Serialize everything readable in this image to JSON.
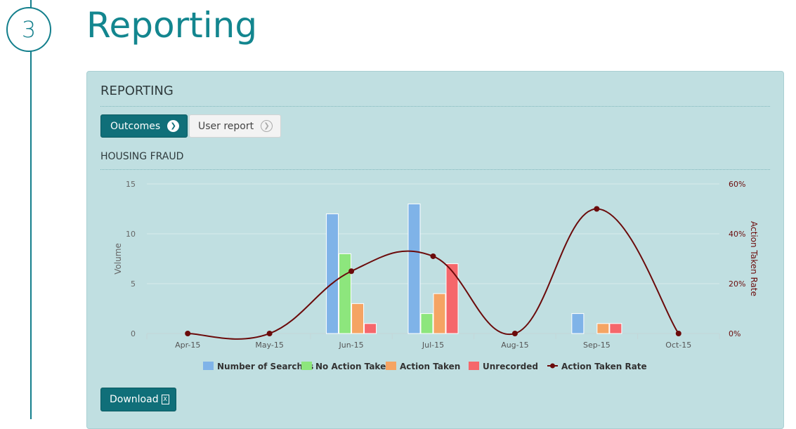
{
  "step": {
    "number": "3"
  },
  "page": {
    "title": "Reporting"
  },
  "panel": {
    "title": "REPORTING",
    "buttons": {
      "outcomes": "Outcomes",
      "user_report": "User report"
    },
    "section_title": "HOUSING FRAUD",
    "download_label": "Download",
    "download_icon": "excel-file-icon"
  },
  "colors": {
    "accent": "#13868f",
    "panel_bg": "#c0dfe1",
    "searches": "#7fb3e8",
    "no_action": "#8de67d",
    "action": "#f5a463",
    "unrecorded": "#f5676b",
    "rate": "#6b0b0b"
  },
  "chart_data": {
    "type": "bar",
    "categories": [
      "Apr-15",
      "May-15",
      "Jun-15",
      "Jul-15",
      "Aug-15",
      "Sep-15",
      "Oct-15"
    ],
    "series": [
      {
        "name": "Number of Searches",
        "values": [
          0,
          0,
          12,
          13,
          0,
          2,
          0
        ],
        "color": "#7fb3e8"
      },
      {
        "name": "No Action Taken",
        "values": [
          0,
          0,
          8,
          2,
          0,
          0,
          0
        ],
        "color": "#8de67d"
      },
      {
        "name": "Action Taken",
        "values": [
          0,
          0,
          3,
          4,
          0,
          1,
          0
        ],
        "color": "#f5a463"
      },
      {
        "name": "Unrecorded",
        "values": [
          0,
          0,
          1,
          7,
          0,
          1,
          0
        ],
        "color": "#f5676b"
      }
    ],
    "line_series": {
      "name": "Action Taken Rate",
      "type": "line",
      "axis": "right",
      "values": [
        0,
        0,
        25,
        31,
        0,
        50,
        0
      ],
      "color": "#6b0b0b"
    },
    "ylabel": "Volume",
    "ylabel_right": "Action Taken Rate",
    "ylim": [
      0,
      15
    ],
    "yticks": [
      "0",
      "5",
      "10",
      "15"
    ],
    "ylim_right": [
      0,
      60
    ],
    "yticks_right": [
      "0%",
      "20%",
      "40%",
      "60%"
    ],
    "grid": true,
    "legend_position": "bottom"
  }
}
